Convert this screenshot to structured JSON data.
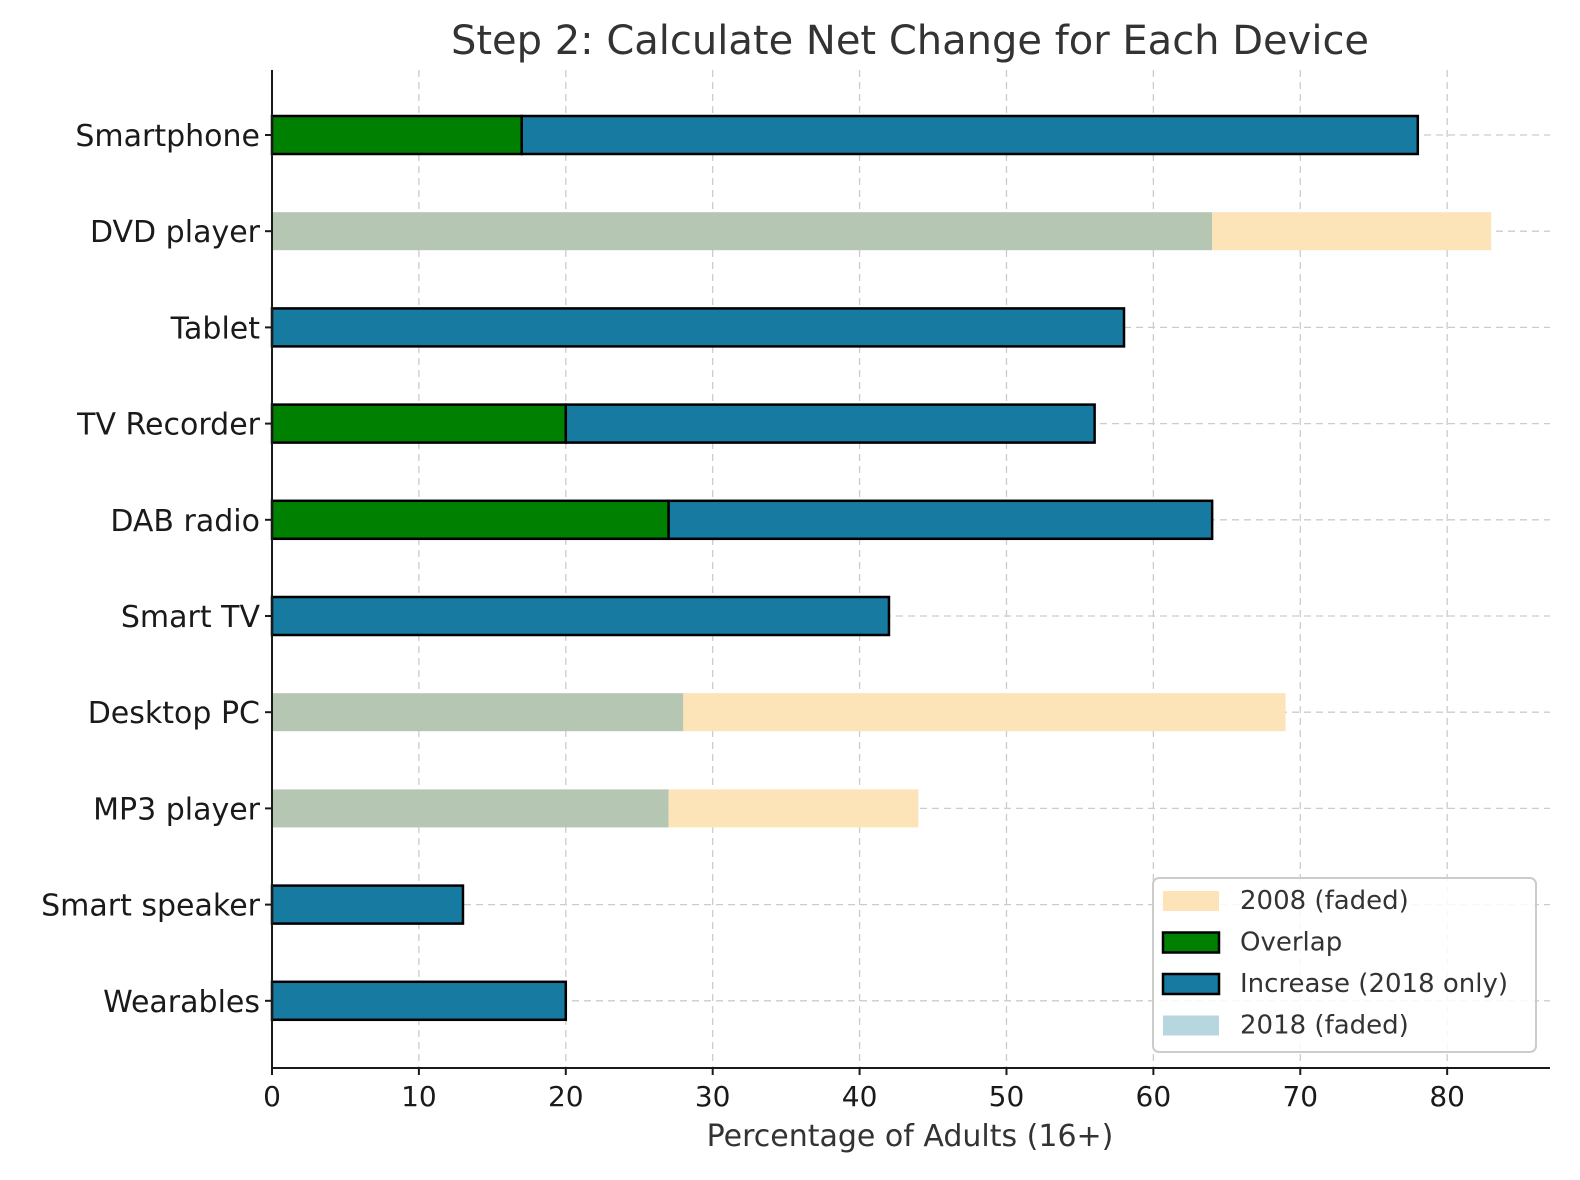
{
  "chart_data": {
    "type": "bar",
    "orientation": "horizontal",
    "title": "Step 2: Calculate Net Change for Each Device",
    "xlabel": "Percentage of Adults (16+)",
    "ylabel": "",
    "xlim": [
      0,
      87
    ],
    "xticks": [
      0,
      10,
      20,
      30,
      40,
      50,
      60,
      70,
      80
    ],
    "grid": true,
    "legend_position": "bottom-right",
    "categories": [
      "Smartphone",
      "DVD player",
      "Tablet",
      "TV Recorder",
      "DAB radio",
      "Smart TV",
      "Desktop PC",
      "MP3 player",
      "Smart speaker",
      "Wearables"
    ],
    "values_2008": [
      17,
      83,
      0,
      20,
      27,
      0,
      69,
      44,
      0,
      0
    ],
    "values_2018": [
      78,
      64,
      58,
      56,
      64,
      42,
      28,
      27,
      13,
      20
    ],
    "series": [
      {
        "name": "2008 (faded)",
        "color": "#fce3b8"
      },
      {
        "name": "Overlap",
        "color": "#008000"
      },
      {
        "name": "Increase (2018 only)",
        "color": "#177aa0"
      },
      {
        "name": "2018 (faded)",
        "color": "#b7d6e0"
      }
    ],
    "faded_overlap_color": "#b5c6b2"
  }
}
